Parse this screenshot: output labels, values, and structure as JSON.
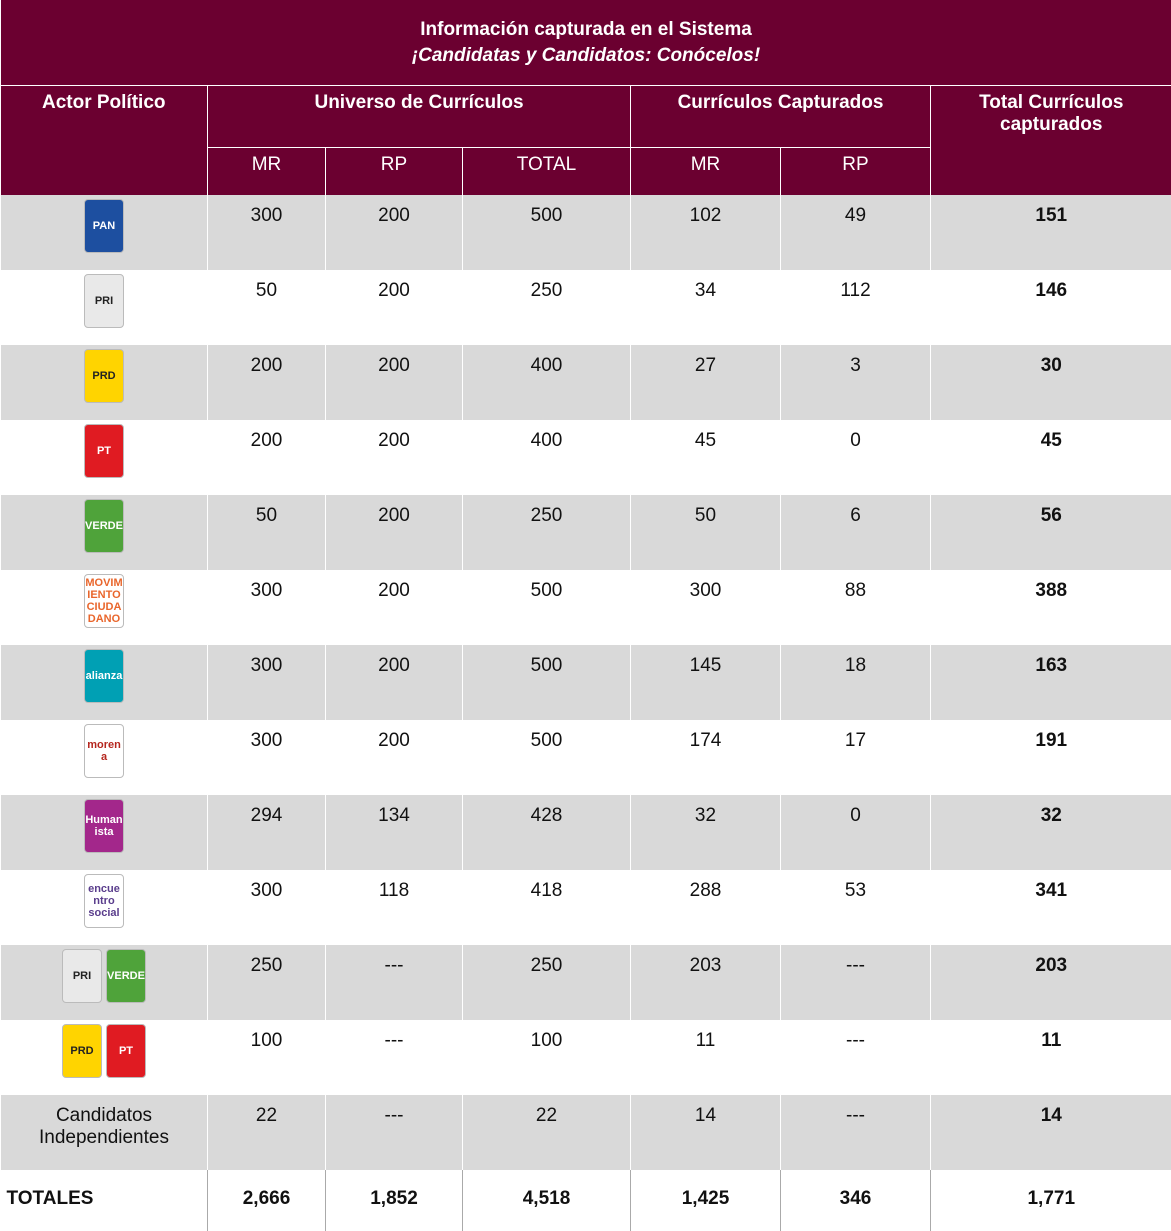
{
  "header": {
    "title": "Información capturada en el Sistema",
    "subtitle": "¡Candidatas y Candidatos: Conócelos!"
  },
  "columns": {
    "actor": "Actor Político",
    "universe": "Universo de Currículos",
    "captured": "Currículos Capturados",
    "total": "Total Currículos capturados",
    "sub": [
      "MR",
      "RP",
      "TOTAL",
      "MR",
      "RP"
    ]
  },
  "rows": [
    {
      "logos": [
        {
          "text": "PAN",
          "color": "#ffffff",
          "bg": "#1d4fa0"
        }
      ],
      "values": [
        300,
        200,
        500,
        102,
        49,
        151
      ]
    },
    {
      "logos": [
        {
          "text": "PRI",
          "color": "#222222",
          "bg": "#e9e9e9"
        }
      ],
      "values": [
        50,
        200,
        250,
        34,
        112,
        146
      ]
    },
    {
      "logos": [
        {
          "text": "PRD",
          "color": "#222222",
          "bg": "#ffd400"
        }
      ],
      "values": [
        200,
        200,
        400,
        27,
        3,
        30
      ]
    },
    {
      "logos": [
        {
          "text": "PT",
          "color": "#ffffff",
          "bg": "#e01b22"
        }
      ],
      "values": [
        200,
        200,
        400,
        45,
        0,
        45
      ]
    },
    {
      "logos": [
        {
          "text": "VERDE",
          "color": "#ffffff",
          "bg": "#4fa33a"
        }
      ],
      "values": [
        50,
        200,
        250,
        50,
        6,
        56
      ]
    },
    {
      "logos": [
        {
          "text": "MOVIMIENTO CIUDADANO",
          "color": "#e9662c",
          "bg": "#ffffff"
        }
      ],
      "values": [
        300,
        200,
        500,
        300,
        88,
        388
      ]
    },
    {
      "logos": [
        {
          "text": "alianza",
          "color": "#ffffff",
          "bg": "#00a0b4"
        }
      ],
      "values": [
        300,
        200,
        500,
        145,
        18,
        163
      ]
    },
    {
      "logos": [
        {
          "text": "morena",
          "color": "#b5261e",
          "bg": "#ffffff"
        }
      ],
      "values": [
        300,
        200,
        500,
        174,
        17,
        191
      ]
    },
    {
      "logos": [
        {
          "text": "Humanista",
          "color": "#ffffff",
          "bg": "#a3278b"
        }
      ],
      "values": [
        294,
        134,
        428,
        32,
        0,
        32
      ]
    },
    {
      "logos": [
        {
          "text": "encuentro social",
          "color": "#5a3d8c",
          "bg": "#ffffff"
        }
      ],
      "values": [
        300,
        118,
        418,
        288,
        53,
        341
      ]
    },
    {
      "logos": [
        {
          "text": "PRI",
          "color": "#222222",
          "bg": "#e9e9e9"
        },
        {
          "text": "VERDE",
          "color": "#ffffff",
          "bg": "#4fa33a"
        }
      ],
      "values": [
        250,
        "---",
        250,
        203,
        "---",
        203
      ]
    },
    {
      "logos": [
        {
          "text": "PRD",
          "color": "#222222",
          "bg": "#ffd400"
        },
        {
          "text": "PT",
          "color": "#ffffff",
          "bg": "#e01b22"
        }
      ],
      "values": [
        100,
        "---",
        100,
        11,
        "---",
        11
      ]
    },
    {
      "actor": "Candidatos Independientes",
      "values": [
        22,
        "---",
        22,
        14,
        "---",
        14
      ]
    }
  ],
  "totals": {
    "actor": "TOTALES",
    "values": [
      "2,666",
      "1,852",
      "4,518",
      "1,425",
      "346",
      "1,771"
    ]
  }
}
